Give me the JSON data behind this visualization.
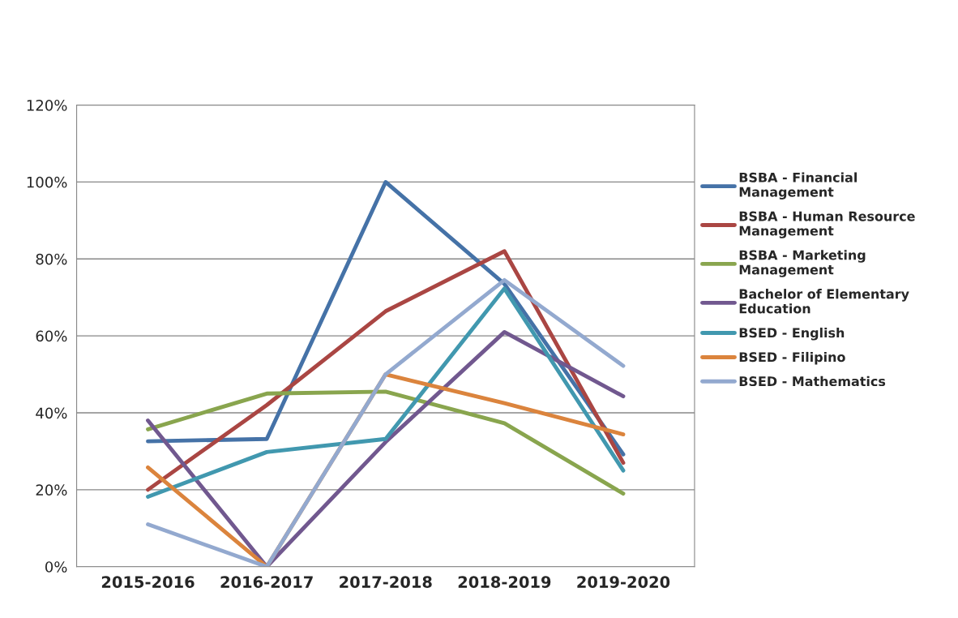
{
  "chart_data": {
    "type": "line",
    "categories": [
      "2015-2016",
      "2016-2017",
      "2017-2018",
      "2018-2019",
      "2019-2020"
    ],
    "series": [
      {
        "name": "BSBA - Financial Management",
        "color": "#4572a7",
        "values": [
          32.6,
          33.2,
          100,
          73.5,
          29.2
        ]
      },
      {
        "name": "BSBA - Human Resource Management",
        "color": "#aa4643",
        "values": [
          20,
          42,
          66.4,
          82,
          27
        ]
      },
      {
        "name": "BSBA - Marketing Management",
        "color": "#89a54e",
        "values": [
          35.7,
          45,
          45.5,
          37.3,
          19
        ]
      },
      {
        "name": "Bachelor of Elementary Education",
        "color": "#71588f",
        "values": [
          38,
          0,
          32.4,
          61,
          44.3
        ]
      },
      {
        "name": "BSED - English",
        "color": "#4198af",
        "values": [
          18.2,
          29.8,
          33.2,
          72.3,
          25
        ]
      },
      {
        "name": "BSED - Filipino",
        "color": "#db843d",
        "values": [
          25.8,
          0,
          50,
          42.5,
          34.4
        ]
      },
      {
        "name": "BSED - Mathematics",
        "color": "#93a9cf",
        "values": [
          11,
          0,
          50,
          74.5,
          52.2
        ]
      }
    ],
    "ylim": [
      0,
      120
    ],
    "yticks": [
      {
        "value": 0,
        "label": "0%"
      },
      {
        "value": 20,
        "label": "20%"
      },
      {
        "value": 40,
        "label": "40%"
      },
      {
        "value": 60,
        "label": "60%"
      },
      {
        "value": 80,
        "label": "80%"
      },
      {
        "value": 100,
        "label": "100%"
      },
      {
        "value": 120,
        "label": "120%"
      }
    ],
    "grid": "y",
    "legend": "right",
    "marker": "none",
    "line_style": "solid"
  }
}
